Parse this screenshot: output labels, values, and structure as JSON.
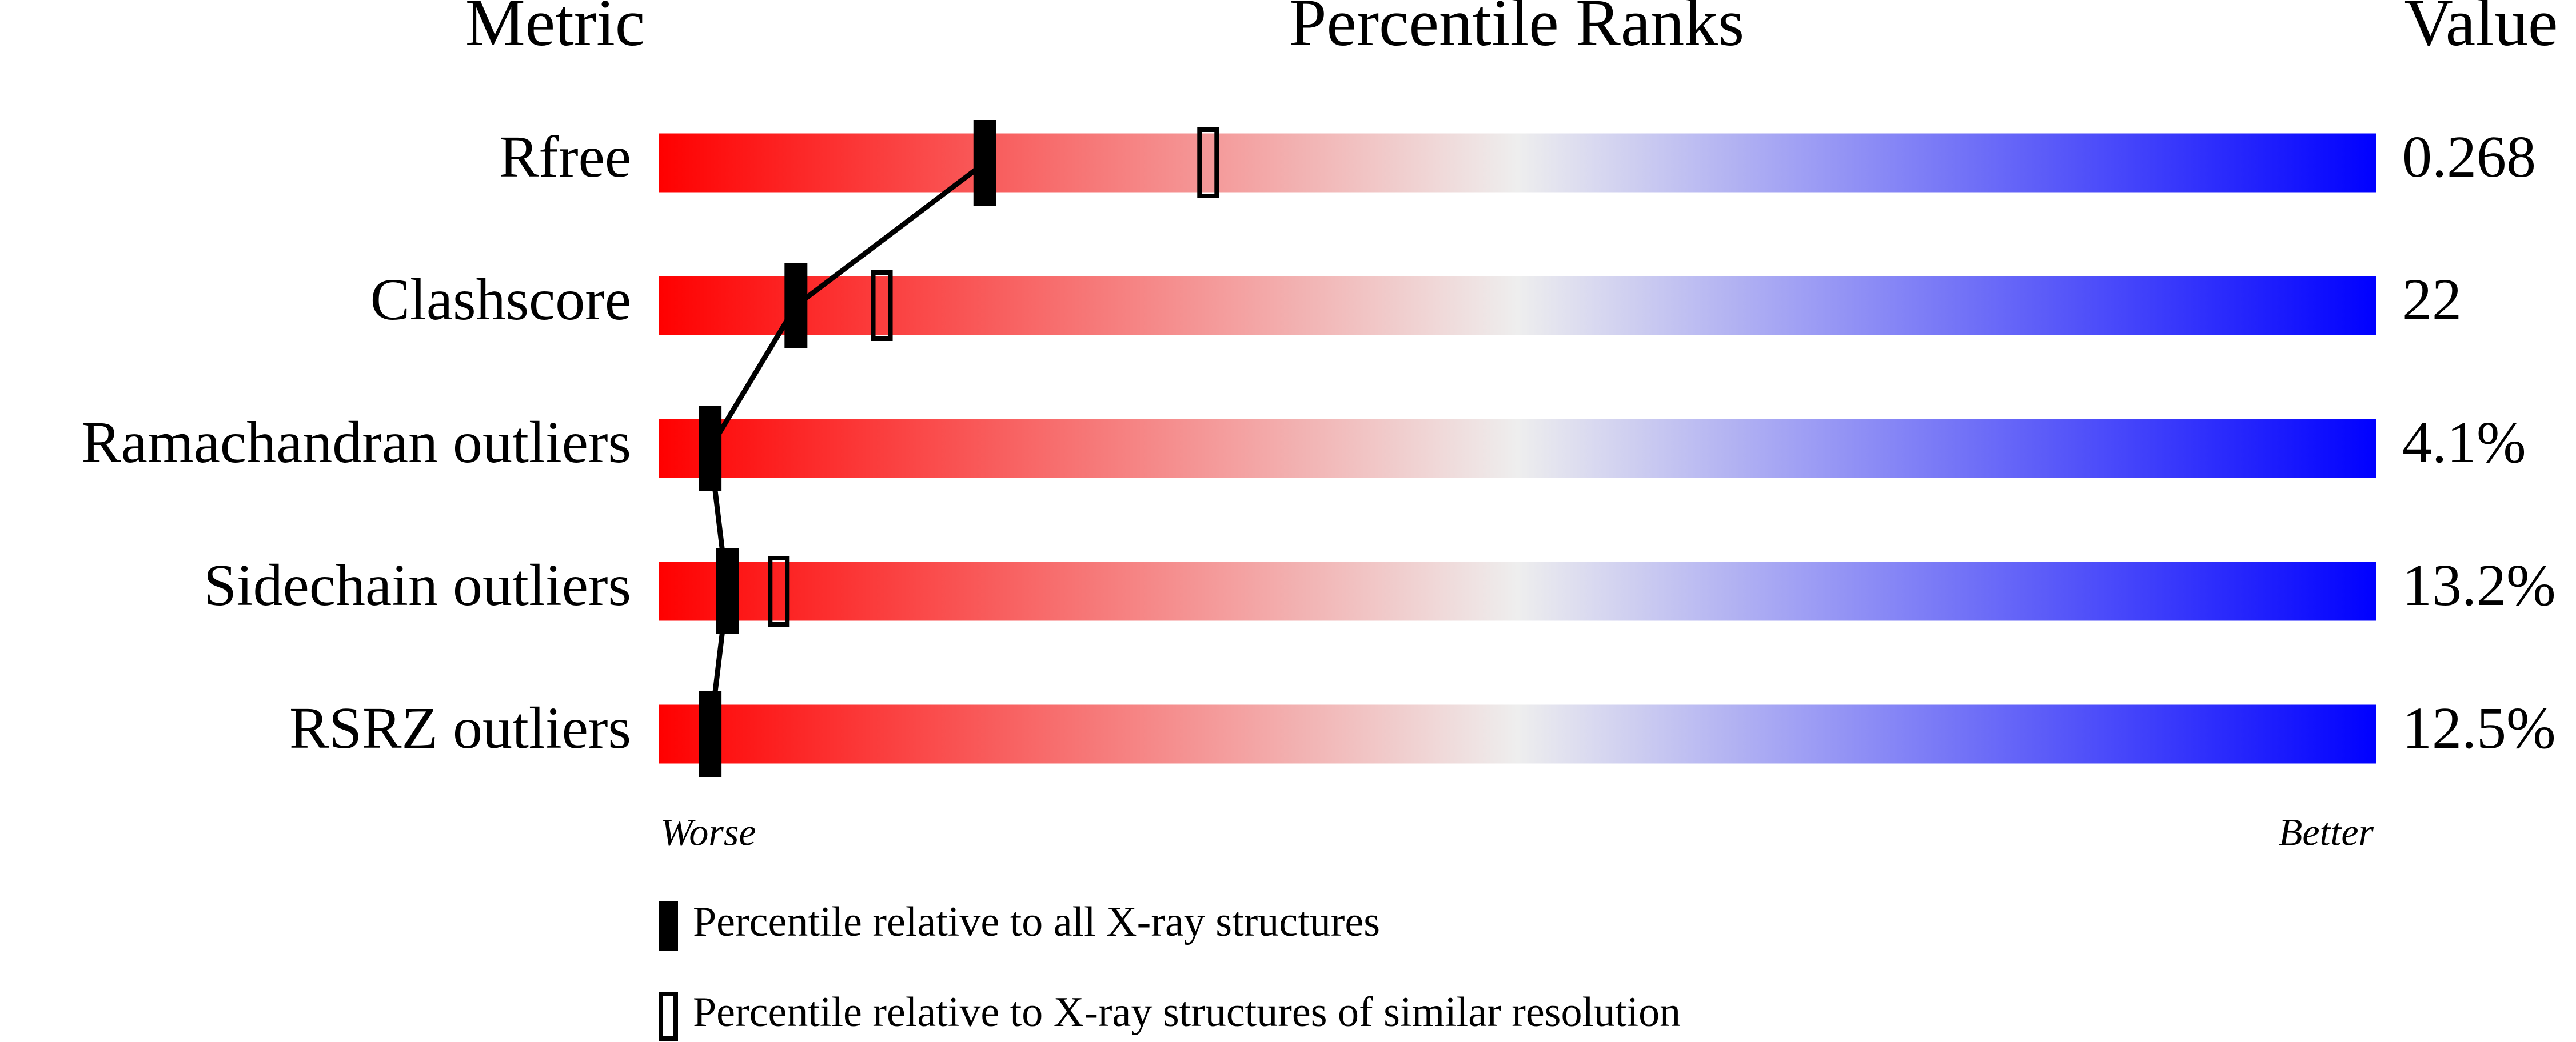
{
  "chart_data": {
    "type": "slider",
    "column_headers": [
      "Metric",
      "Percentile Ranks",
      "Value"
    ],
    "categories": [
      "Rfree",
      "Clashscore",
      "Ramachandran outliers",
      "Sidechain outliers",
      "RSRZ outliers"
    ],
    "metric_values": [
      "0.268",
      "22",
      "4.1%",
      "13.2%",
      "12.5%"
    ],
    "series": [
      {
        "name": "Percentile relative to all X-ray structures",
        "color": "#000000",
        "filled": true,
        "values": [
          19,
          8,
          3,
          4,
          3
        ]
      },
      {
        "name": "Percentile relative to X-ray structures of similar resolution",
        "color": "#000000",
        "filled": false,
        "values": [
          32,
          13,
          3,
          7,
          null
        ]
      }
    ],
    "xlim": [
      0,
      100
    ],
    "axis_labels": [
      "Worse",
      "Better"
    ],
    "gradient": [
      "#ff0000",
      "#eeeeee",
      "#0000ff"
    ]
  }
}
